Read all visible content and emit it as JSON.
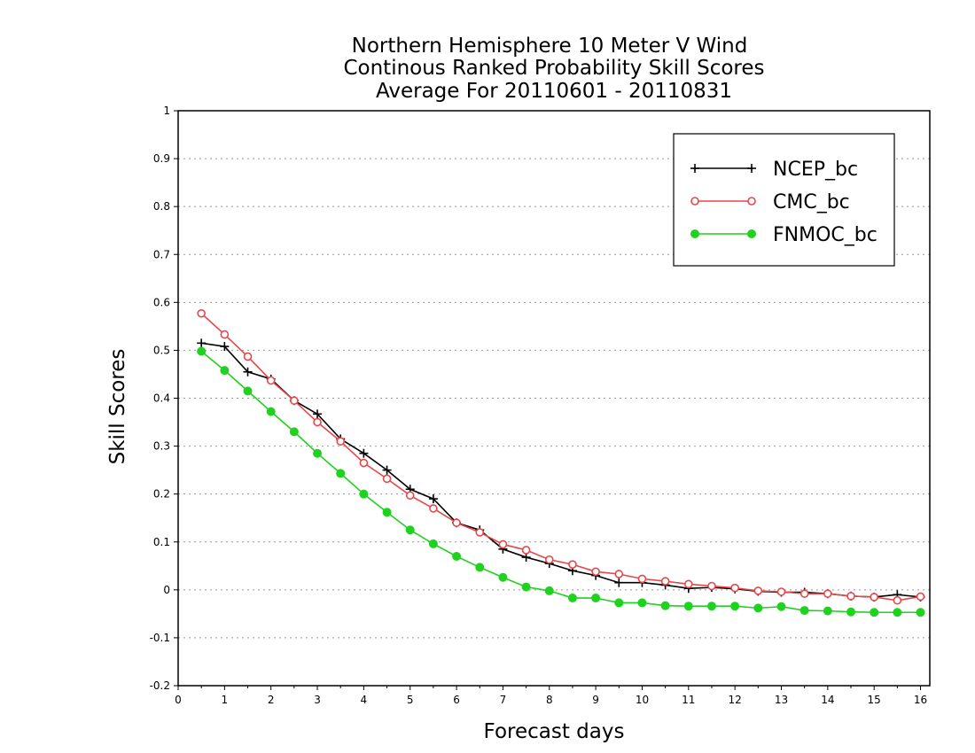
{
  "chart_data": {
    "type": "line",
    "title_lines": [
      "Northern Hemisphere 10 Meter V Wind",
      "Continous Ranked Probability Skill Scores",
      "Average For 20110601 - 20110831"
    ],
    "xlabel": "Forecast days",
    "ylabel": "Skill Scores",
    "xlim": [
      0,
      16.2
    ],
    "ylim": [
      -0.2,
      1
    ],
    "xticks": [
      "0",
      "1",
      "2",
      "3",
      "4",
      "5",
      "6",
      "7",
      "8",
      "9",
      "10",
      "11",
      "12",
      "13",
      "14",
      "15",
      "16"
    ],
    "yticks": [
      "-0.2",
      "-0.1",
      "0",
      "0.1",
      "0.2",
      "0.3",
      "0.4",
      "0.5",
      "0.6",
      "0.7",
      "0.8",
      "0.9",
      "1"
    ],
    "grid": "horizontal dotted",
    "legend_position": "top-right",
    "x": [
      0.5,
      1,
      1.5,
      2,
      2.5,
      3,
      3.5,
      4,
      4.5,
      5,
      5.5,
      6,
      6.5,
      7,
      7.5,
      8,
      8.5,
      9,
      9.5,
      10,
      10.5,
      11,
      11.5,
      12,
      12.5,
      13,
      13.5,
      14,
      14.5,
      15,
      15.5,
      16
    ],
    "series": [
      {
        "name": "NCEP_bc",
        "color": "#000000",
        "marker": "plus",
        "values": [
          0.515,
          0.508,
          0.455,
          0.44,
          0.395,
          0.367,
          0.315,
          0.285,
          0.25,
          0.21,
          0.19,
          0.14,
          0.125,
          0.085,
          0.068,
          0.055,
          0.04,
          0.03,
          0.015,
          0.015,
          0.01,
          0.003,
          0.005,
          0.002,
          -0.003,
          -0.005,
          -0.005,
          -0.008,
          -0.013,
          -0.015,
          -0.01,
          -0.015
        ]
      },
      {
        "name": "CMC_bc",
        "color": "#e8474a",
        "marker": "open-circle",
        "values": [
          0.577,
          0.533,
          0.487,
          0.437,
          0.395,
          0.35,
          0.31,
          0.265,
          0.232,
          0.197,
          0.17,
          0.14,
          0.12,
          0.095,
          0.083,
          0.063,
          0.053,
          0.038,
          0.033,
          0.023,
          0.018,
          0.012,
          0.008,
          0.004,
          -0.002,
          -0.004,
          -0.008,
          -0.008,
          -0.013,
          -0.015,
          -0.022,
          -0.014
        ]
      },
      {
        "name": "FNMOC_bc",
        "color": "#1fd21f",
        "marker": "filled-circle",
        "values": [
          0.498,
          0.458,
          0.415,
          0.372,
          0.33,
          0.285,
          0.243,
          0.2,
          0.162,
          0.125,
          0.096,
          0.07,
          0.047,
          0.026,
          0.006,
          -0.002,
          -0.017,
          -0.017,
          -0.027,
          -0.027,
          -0.033,
          -0.034,
          -0.034,
          -0.034,
          -0.038,
          -0.035,
          -0.043,
          -0.044,
          -0.046,
          -0.047,
          -0.047,
          -0.047
        ]
      }
    ]
  }
}
